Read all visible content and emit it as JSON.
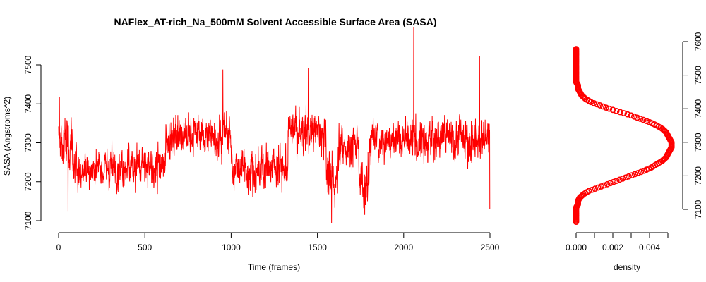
{
  "chart_data": [
    {
      "type": "line",
      "title": "NAFlex_AT-rich_Na_500mM Solvent Accessible Surface Area (SASA)",
      "xlabel": "Time (frames)",
      "ylabel": "SASA (Angstroms^2)",
      "xlim": [
        0,
        2500
      ],
      "ylim": [
        7100,
        7500
      ],
      "x_ticks": [
        "0",
        "500",
        "1000",
        "1500",
        "2000",
        "2500"
      ],
      "y_ticks": [
        "7100",
        "7200",
        "7300",
        "7400",
        "7500"
      ],
      "color": "#ff0000",
      "n_points": 2500,
      "value_range": [
        7093,
        7596
      ],
      "segments": [
        {
          "from": 0,
          "to": 80,
          "mean": 7300,
          "sd": 45
        },
        {
          "from": 80,
          "to": 620,
          "mean": 7235,
          "sd": 35
        },
        {
          "from": 620,
          "to": 1000,
          "mean": 7320,
          "sd": 40
        },
        {
          "from": 1000,
          "to": 1330,
          "mean": 7235,
          "sd": 35
        },
        {
          "from": 1330,
          "to": 1550,
          "mean": 7330,
          "sd": 40
        },
        {
          "from": 1550,
          "to": 1620,
          "mean": 7210,
          "sd": 45
        },
        {
          "from": 1620,
          "to": 1740,
          "mean": 7295,
          "sd": 40
        },
        {
          "from": 1740,
          "to": 1800,
          "mean": 7200,
          "sd": 45
        },
        {
          "from": 1800,
          "to": 2500,
          "mean": 7310,
          "sd": 40
        }
      ],
      "extremes": [
        {
          "x": 5,
          "y": 7418
        },
        {
          "x": 55,
          "y": 7125
        },
        {
          "x": 952,
          "y": 7488
        },
        {
          "x": 1447,
          "y": 7492
        },
        {
          "x": 1582,
          "y": 7093
        },
        {
          "x": 1774,
          "y": 7115
        },
        {
          "x": 2058,
          "y": 7596
        },
        {
          "x": 2440,
          "y": 7522
        },
        {
          "x": 2499,
          "y": 7130
        }
      ]
    },
    {
      "type": "scatter",
      "xlabel": "density",
      "xlim": [
        0,
        0.005
      ],
      "ylim": [
        7100,
        7600
      ],
      "x_ticks": [
        "0.000",
        "0.002",
        "0.004"
      ],
      "y_ticks": [
        "7100",
        "7200",
        "7300",
        "7400",
        "7500",
        "7600"
      ],
      "color": "#ff0000",
      "density_points": [
        [
          7063,
          0.0
        ],
        [
          7080,
          0.0
        ],
        [
          7095,
          0.0
        ],
        [
          7105,
          0.0
        ],
        [
          7115,
          0.0001
        ],
        [
          7125,
          0.0001
        ],
        [
          7135,
          0.0002
        ],
        [
          7145,
          0.0004
        ],
        [
          7155,
          0.0007
        ],
        [
          7165,
          0.0012
        ],
        [
          7175,
          0.0017
        ],
        [
          7185,
          0.0022
        ],
        [
          7195,
          0.0027
        ],
        [
          7205,
          0.0032
        ],
        [
          7215,
          0.0037
        ],
        [
          7225,
          0.0041
        ],
        [
          7235,
          0.0044
        ],
        [
          7245,
          0.0047
        ],
        [
          7255,
          0.0049
        ],
        [
          7265,
          0.005
        ],
        [
          7275,
          0.0051
        ],
        [
          7285,
          0.0052
        ],
        [
          7293,
          0.0052
        ],
        [
          7300,
          0.0052
        ],
        [
          7310,
          0.0051
        ],
        [
          7320,
          0.005
        ],
        [
          7330,
          0.0049
        ],
        [
          7340,
          0.0047
        ],
        [
          7350,
          0.0044
        ],
        [
          7360,
          0.004
        ],
        [
          7370,
          0.0035
        ],
        [
          7380,
          0.003
        ],
        [
          7390,
          0.0024
        ],
        [
          7400,
          0.0018
        ],
        [
          7410,
          0.0013
        ],
        [
          7420,
          0.0008
        ],
        [
          7430,
          0.0005
        ],
        [
          7440,
          0.0003
        ],
        [
          7450,
          0.0002
        ],
        [
          7460,
          0.0001
        ],
        [
          7470,
          0.0001
        ],
        [
          7480,
          0.0
        ],
        [
          7500,
          0.0
        ],
        [
          7520,
          0.0
        ],
        [
          7540,
          0.0
        ],
        [
          7560,
          0.0
        ],
        [
          7578,
          0.0
        ]
      ]
    }
  ]
}
